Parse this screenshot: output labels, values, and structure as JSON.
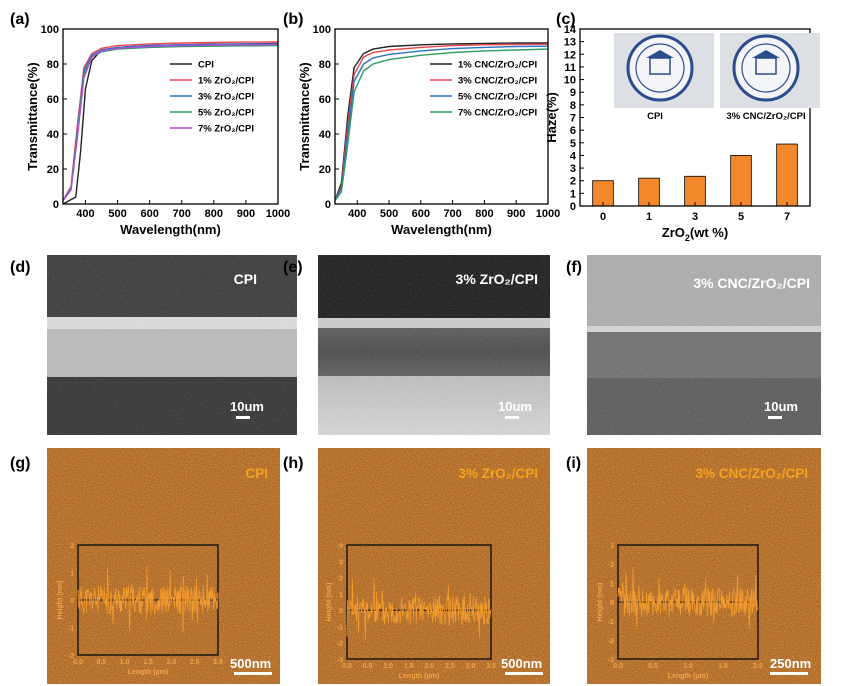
{
  "panels": {
    "a": {
      "label": "(a)"
    },
    "b": {
      "label": "(b)"
    },
    "c": {
      "label": "(c)",
      "photo_left_caption": "CPI",
      "photo_right_caption": "3% CNC/ZrO₂/CPI"
    },
    "d": {
      "label": "(d)",
      "sample": "CPI",
      "scale_text": "10um"
    },
    "e": {
      "label": "(e)",
      "sample": "3% ZrO₂/CPI",
      "scale_text": "10um"
    },
    "f": {
      "label": "(f)",
      "sample": "3% CNC/ZrO₂/CPI",
      "scale_text": "10um"
    },
    "g": {
      "label": "(g)",
      "sample": "CPI",
      "scale_text": "500nm"
    },
    "h": {
      "label": "(h)",
      "sample": "3% ZrO₂/CPI",
      "scale_text": "500nm"
    },
    "i": {
      "label": "(i)",
      "sample": "3% CNC/ZrO₂/CPI",
      "scale_text": "250nm"
    }
  },
  "chart_data": [
    {
      "id": "a",
      "type": "line",
      "xlabel": "Wavelength(nm)",
      "ylabel": "Transmittance(%)",
      "xlim": [
        330,
        1000
      ],
      "ylim": [
        0,
        100
      ],
      "xticks": [
        400,
        500,
        600,
        700,
        800,
        900,
        1000
      ],
      "yticks": [
        0,
        20,
        40,
        60,
        80,
        100
      ],
      "legend_position": "center-right",
      "series": [
        {
          "name": "CPI",
          "color": "#222222",
          "x": [
            330,
            370,
            385,
            400,
            420,
            450,
            500,
            600,
            700,
            800,
            900,
            1000
          ],
          "y": [
            0,
            4,
            30,
            66,
            82,
            88,
            89.5,
            90.5,
            91,
            91.3,
            91.5,
            91.7
          ]
        },
        {
          "name": "1% ZrO₂/CPI",
          "color": "#e8474d",
          "x": [
            330,
            355,
            375,
            395,
            420,
            450,
            500,
            600,
            700,
            800,
            900,
            1000
          ],
          "y": [
            2,
            10,
            45,
            78,
            86,
            89,
            90.5,
            91.5,
            92,
            92.3,
            92.5,
            92.6
          ]
        },
        {
          "name": "3% ZrO₂/CPI",
          "color": "#2d6fc4",
          "x": [
            330,
            355,
            375,
            395,
            420,
            450,
            500,
            600,
            700,
            800,
            900,
            1000
          ],
          "y": [
            2,
            9,
            42,
            76,
            85,
            88,
            89.5,
            90.5,
            91,
            91.2,
            91.4,
            91.5
          ]
        },
        {
          "name": "5% ZrO₂/CPI",
          "color": "#2a9d64",
          "x": [
            330,
            355,
            375,
            395,
            420,
            450,
            500,
            600,
            700,
            800,
            900,
            1000
          ],
          "y": [
            2,
            8,
            40,
            74,
            84,
            87,
            88.5,
            89.5,
            90,
            90.2,
            90.4,
            90.5
          ]
        },
        {
          "name": "7% ZrO₂/CPI",
          "color": "#b04fd6",
          "x": [
            330,
            355,
            375,
            395,
            420,
            450,
            500,
            600,
            700,
            800,
            900,
            1000
          ],
          "y": [
            2,
            8,
            38,
            72,
            84,
            87.5,
            89,
            90,
            90.5,
            90.8,
            91,
            91.1
          ]
        }
      ]
    },
    {
      "id": "b",
      "type": "line",
      "xlabel": "Wavelength(nm)",
      "ylabel": "Transmittance(%)",
      "xlim": [
        330,
        1000
      ],
      "ylim": [
        0,
        100
      ],
      "xticks": [
        400,
        500,
        600,
        700,
        800,
        900,
        1000
      ],
      "yticks": [
        0,
        20,
        40,
        60,
        80,
        100
      ],
      "legend_position": "center-right",
      "series": [
        {
          "name": "1% CNC/ZrO₂/CPI",
          "color": "#222222",
          "x": [
            330,
            350,
            370,
            390,
            420,
            450,
            500,
            600,
            700,
            800,
            900,
            1000
          ],
          "y": [
            2,
            12,
            50,
            78,
            86,
            88.5,
            90,
            91,
            91.5,
            91.8,
            92,
            92
          ]
        },
        {
          "name": "3% CNC/ZrO₂/CPI",
          "color": "#e8474d",
          "x": [
            330,
            350,
            370,
            390,
            420,
            450,
            500,
            600,
            700,
            800,
            900,
            1000
          ],
          "y": [
            2,
            10,
            45,
            74,
            84,
            86.5,
            88,
            89.5,
            90.5,
            91,
            91.2,
            91.3
          ]
        },
        {
          "name": "5% CNC/ZrO₂/CPI",
          "color": "#2d6fc4",
          "x": [
            330,
            350,
            370,
            390,
            420,
            450,
            500,
            600,
            700,
            800,
            900,
            1000
          ],
          "y": [
            2,
            9,
            40,
            70,
            80,
            83.5,
            85.5,
            87.5,
            88.8,
            89.5,
            90,
            90.2
          ]
        },
        {
          "name": "7% CNC/ZrO₂/CPI",
          "color": "#2a9d64",
          "x": [
            330,
            350,
            370,
            390,
            420,
            450,
            500,
            600,
            700,
            800,
            900,
            1000
          ],
          "y": [
            2,
            7,
            34,
            64,
            76,
            80,
            82.5,
            85,
            86.5,
            87.5,
            88,
            88.5
          ]
        }
      ]
    },
    {
      "id": "c",
      "type": "bar",
      "xlabel": "ZrO₂(wt %)",
      "ylabel": "Haze(%)",
      "categories": [
        "0",
        "1",
        "3",
        "5",
        "7"
      ],
      "values": [
        2.0,
        2.2,
        2.35,
        4.0,
        4.9
      ],
      "ylim": [
        0,
        14
      ],
      "yticks": [
        0,
        1,
        2,
        3,
        4,
        5,
        6,
        7,
        8,
        9,
        10,
        11,
        12,
        13,
        14
      ],
      "bar_color": "#f2882b"
    },
    {
      "id": "g",
      "type": "line",
      "xlabel": "Length (μm)",
      "ylabel": "Height (nm)",
      "xlim": [
        0,
        3
      ],
      "ylim": [
        -2,
        2
      ],
      "xticks": [
        "0.0",
        "0.5",
        "1.0",
        "1.5",
        "2.0",
        "2.5",
        "3.0"
      ],
      "yticks": [
        -2,
        -1,
        0,
        1,
        2
      ]
    },
    {
      "id": "h",
      "type": "line",
      "xlabel": "Length (μm)",
      "ylabel": "Height (nm)",
      "xlim": [
        0,
        3.5
      ],
      "ylim": [
        -3,
        4
      ],
      "xticks": [
        "0.0",
        "0.5",
        "1.0",
        "1.5",
        "2.0",
        "2.5",
        "3.0",
        "3.5"
      ],
      "yticks": [
        -3,
        -2,
        -1,
        0,
        1,
        2,
        3,
        4
      ]
    },
    {
      "id": "i",
      "type": "line",
      "xlabel": "Length (μm)",
      "ylabel": "Height (nm)",
      "xlim": [
        0,
        2
      ],
      "ylim": [
        -3,
        3
      ],
      "xticks": [
        "0.0",
        "0.5",
        "1.0",
        "1.5",
        "2.0"
      ],
      "yticks": [
        -3,
        -2,
        -1,
        0,
        1,
        2,
        3
      ]
    }
  ]
}
